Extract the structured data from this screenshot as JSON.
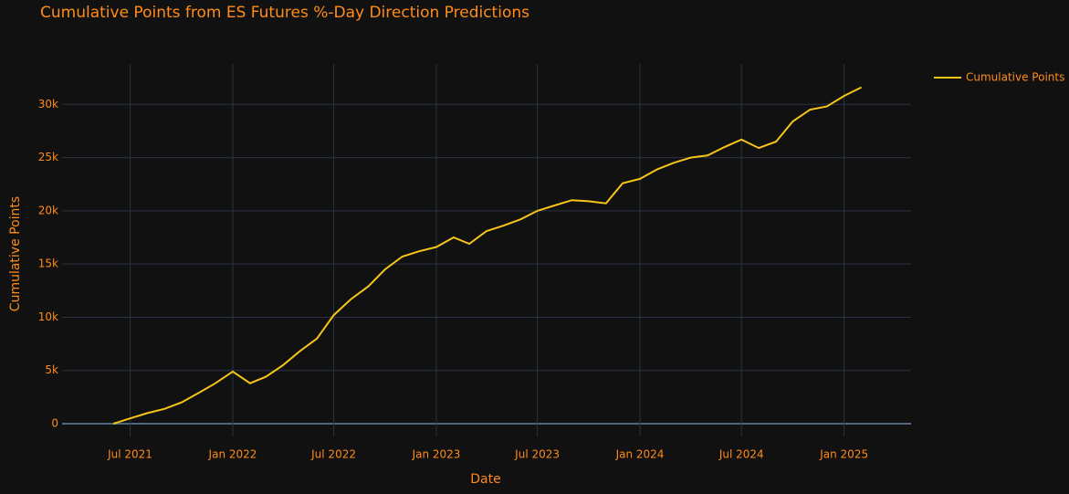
{
  "chart_data": {
    "type": "line",
    "title": "Cumulative Points from ES Futures %-Day Direction Predictions",
    "x_label": "Date",
    "y_label": "Cumulative Points",
    "x": [
      "2021-06",
      "2021-07",
      "2021-08",
      "2021-09",
      "2021-10",
      "2021-11",
      "2021-12",
      "2022-01",
      "2022-02",
      "2022-03",
      "2022-04",
      "2022-05",
      "2022-06",
      "2022-07",
      "2022-08",
      "2022-09",
      "2022-10",
      "2022-11",
      "2022-12",
      "2023-01",
      "2023-02",
      "2023-03",
      "2023-04",
      "2023-05",
      "2023-06",
      "2023-07",
      "2023-08",
      "2023-09",
      "2023-10",
      "2023-11",
      "2023-12",
      "2024-01",
      "2024-02",
      "2024-03",
      "2024-04",
      "2024-05",
      "2024-06",
      "2024-07",
      "2024-08",
      "2024-09",
      "2024-10",
      "2024-11",
      "2024-12",
      "2025-01",
      "2025-02"
    ],
    "series": [
      {
        "name": "Cumulative Points",
        "color": "#f5c518",
        "values": [
          0,
          500,
          1000,
          1400,
          2000,
          2900,
          3800,
          4900,
          3800,
          4400,
          5500,
          6800,
          8000,
          10200,
          11700,
          12900,
          14500,
          15700,
          16200,
          16600,
          17500,
          16900,
          18100,
          18600,
          19200,
          20000,
          20500,
          21000,
          20900,
          20700,
          22600,
          23000,
          23900,
          24500,
          25000,
          25200,
          26000,
          26700,
          25900,
          26500,
          28400,
          29500,
          29800,
          30800,
          31600
        ]
      }
    ],
    "xlim": [
      "2021-03",
      "2025-05"
    ],
    "xticks": [
      {
        "value": "2021-07",
        "label": "Jul 2021"
      },
      {
        "value": "2022-01",
        "label": "Jan 2022"
      },
      {
        "value": "2022-07",
        "label": "Jul 2022"
      },
      {
        "value": "2023-01",
        "label": "Jan 2023"
      },
      {
        "value": "2023-07",
        "label": "Jul 2023"
      },
      {
        "value": "2024-01",
        "label": "Jan 2024"
      },
      {
        "value": "2024-07",
        "label": "Jul 2024"
      },
      {
        "value": "2025-01",
        "label": "Jan 2025"
      }
    ],
    "ylim": [
      -1200,
      33800
    ],
    "yticks": [
      0,
      {
        "value": 5000,
        "label": "5k"
      },
      {
        "value": 10000,
        "label": "10k"
      },
      {
        "value": 15000,
        "label": "15k"
      },
      {
        "value": 20000,
        "label": "20k"
      },
      {
        "value": 25000,
        "label": "25k"
      },
      {
        "value": 30000,
        "label": "30k"
      }
    ],
    "grid": true,
    "legend": "top-right"
  }
}
